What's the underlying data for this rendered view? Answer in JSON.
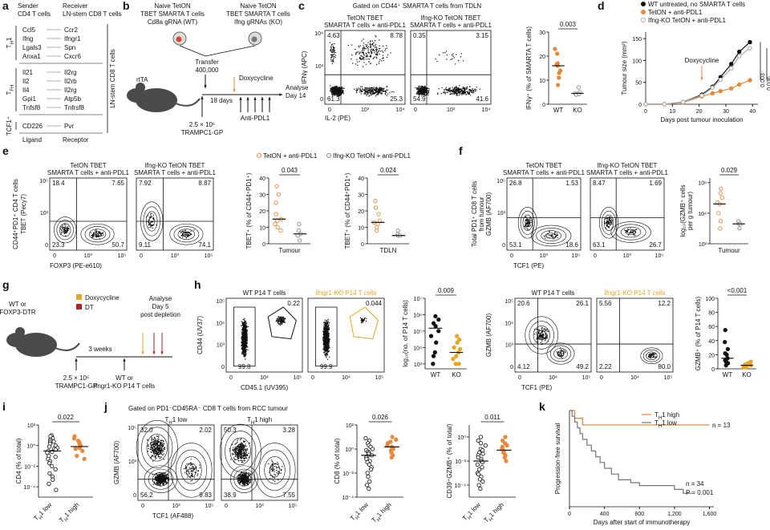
{
  "a": {
    "label": "a",
    "sender": [
      "Sender",
      "CD4 T cells"
    ],
    "receiver": [
      "Receiver",
      "LN-stem CD8 T cells"
    ],
    "groups": [
      {
        "name": {
          "main": "T",
          "sub": "H",
          "rest": "1"
        },
        "pairs": [
          [
            "Ccl5",
            "Ccr2"
          ],
          [
            "Ifng",
            "Ifngr1"
          ],
          [
            "Lgals3",
            "Spn"
          ],
          [
            "Anxa1",
            "Cxcr6"
          ]
        ]
      },
      {
        "name": {
          "main": "T",
          "sub": "FH"
        },
        "pairs": [
          [
            "Il21",
            "Il2rg"
          ],
          [
            "Il2",
            "Il2rb"
          ],
          [
            "Il4",
            "Il2rg"
          ],
          [
            "Gpi1",
            "Atp5b"
          ],
          [
            "Tnfsf8",
            "Tnfrsf8"
          ]
        ]
      },
      {
        "name": {
          "main": "TCF1⁺"
        },
        "pairs": [
          [
            "CD226",
            "Pvr"
          ]
        ]
      }
    ],
    "footer": [
      "Ligand",
      "Receptor"
    ],
    "side": "LN-stem CD8 T cells"
  },
  "b": {
    "label": "b",
    "wt": [
      "Naive TetON",
      "TBET SMARTA T cells",
      "Cd8a gRNA (WT)"
    ],
    "ko": [
      "Naive TetON",
      "TBET SMARTA T cells",
      "Ifng gRNAs (KO)"
    ],
    "transfer": [
      "Transfer",
      "400,000"
    ],
    "mouse": "rtTA",
    "days": "18 days",
    "dox": "Doxycycline",
    "analyse": [
      "Analyse",
      "Day 14"
    ],
    "tumour": [
      "2.5 × 10⁶",
      "TRAMPC1-GP"
    ],
    "treatment": "Anti-PDL1"
  },
  "c": {
    "label": "c",
    "title": "Gated on CD44⁺ SMARTA T cells from TDLN",
    "flow": [
      {
        "title": [
          "TetON TBET",
          "SMARTA T cells + anti-PDL1"
        ],
        "quadrants": [
          4.63,
          8.78,
          61.3,
          25.3
        ]
      },
      {
        "title": [
          "Ifng-KO TetON TBET",
          "SMARTA T cells + anti-PDL1"
        ],
        "quadrants": [
          0.35,
          3.15,
          54.9,
          41.6
        ]
      }
    ],
    "flow_yticks": [
      "10⁴",
      "10³",
      "0"
    ],
    "flow_xticks": [
      "0",
      "10³",
      "10⁴"
    ],
    "ylabel": "IFNγ (APC)",
    "xlabel": "IL-2 (PE)",
    "dots": {
      "p": 0.003,
      "ylabel": [
        "IFNγ⁺ (% of SMARTA T cells)"
      ],
      "categories": [
        "WT",
        "KO"
      ],
      "ylim": [
        0,
        30
      ],
      "yticks": [
        0,
        10,
        20,
        30
      ],
      "groups": [
        {
          "color": "#e8883a",
          "values": [
            23,
            21,
            17,
            16.5,
            16,
            14,
            13,
            11,
            8
          ],
          "median": 16
        },
        {
          "color": "#8c8c8c",
          "hollow": true,
          "values": [
            7,
            5,
            4.5,
            4,
            4,
            4.2
          ],
          "median": 4.5
        }
      ]
    }
  },
  "d": {
    "label": "d",
    "ylabel": "Tumour size (mm²)",
    "xlabel": "Days post tumour inoculation",
    "dox": "Doxycycline",
    "dox_day": 21,
    "xlim": [
      0,
      42
    ],
    "xticks": [
      0,
      10,
      20,
      30,
      40
    ],
    "ylim": [
      0,
      165
    ],
    "yticks": [
      0,
      50,
      100,
      150
    ],
    "x": [
      0,
      7,
      14,
      21,
      25,
      28,
      32,
      35,
      39
    ],
    "series": [
      {
        "name": "WT untreated, no SMARTA T cells",
        "color": "#111111",
        "values": [
          0,
          0,
          5,
          22,
          40,
          62,
          92,
          120,
          142
        ]
      },
      {
        "name": "TetON + anti-PDL1",
        "color": "#e8883a",
        "values": [
          0,
          0,
          4,
          18,
          25,
          30,
          36,
          45,
          55
        ]
      },
      {
        "name": "Ifng-KO TetON + anti-PDL1",
        "color": "#a8a8a8",
        "hollow": true,
        "values": [
          0,
          0,
          5,
          20,
          38,
          56,
          82,
          110,
          128
        ]
      }
    ],
    "p": [
      0.003,
      0.036
    ]
  },
  "e": {
    "label": "e",
    "legend": [
      "TetON + anti-PDL1",
      "Ifng-KO TetON + anti-PDL1"
    ],
    "flow": [
      {
        "title": [
          "TetON TBET",
          "SMARTA T cells + anti-PDL1"
        ],
        "quadrants": [
          18.4,
          7.65,
          23.3,
          50.7
        ]
      },
      {
        "title": [
          "Ifng-KO TetON TBET",
          "SMARTA T cells + anti-PDL1"
        ],
        "quadrants": [
          7.92,
          8.87,
          9.11,
          74.1
        ]
      }
    ],
    "flow_yticks": [
      "10⁵",
      "10³",
      "0"
    ],
    "flow_xticks": [
      "0",
      "10⁰",
      "10⁵"
    ],
    "ylabel": [
      "CD44⁺PD1⁺ CD4 T cells",
      "TBET (Pecy7)"
    ],
    "xlabel": "FOXP3 (PE-e610)",
    "dots": [
      {
        "p": 0.043,
        "ylabel": [
          "TBET⁺ (% of CD44⁺PD1⁺)"
        ],
        "xlabel": "Tumour",
        "ylim": [
          0,
          40
        ],
        "yticks": [
          0,
          10,
          20,
          30,
          40
        ],
        "groups": [
          {
            "color": "#e8883a",
            "hollow": true,
            "values": [
              35,
              30,
              25,
              18,
              15,
              14,
              12,
              10,
              8
            ],
            "median": 15
          },
          {
            "color": "#8c8c8c",
            "hollow": true,
            "values": [
              12,
              8,
              6,
              5,
              2
            ],
            "median": 6
          }
        ]
      },
      {
        "p": 0.024,
        "ylabel": [
          "TBET⁺ (% of CD44⁺PD1⁺)"
        ],
        "xlabel": "TDLN",
        "ylim": [
          0,
          40
        ],
        "yticks": [
          0,
          10,
          20,
          30,
          40
        ],
        "groups": [
          {
            "color": "#e8883a",
            "hollow": true,
            "values": [
              26,
              22,
              18,
              14,
              13,
              12,
              10,
              8
            ],
            "median": 13
          },
          {
            "color": "#8c8c8c",
            "hollow": true,
            "values": [
              8,
              6,
              5,
              5
            ],
            "median": 5
          }
        ]
      }
    ]
  },
  "f": {
    "label": "f",
    "flow": [
      {
        "title": [
          "TetON TBET",
          "SMARTA T cells + anti-PDL1"
        ],
        "quadrants": [
          26.8,
          1.53,
          53.1,
          18.6
        ]
      },
      {
        "title": [
          "Ifng-KO TetON TBET",
          "SMARTA T cells + anti-PDL1"
        ],
        "quadrants": [
          8.47,
          1.69,
          63.1,
          26.7
        ]
      }
    ],
    "flow_yticks": [
      "10⁵",
      "10³",
      "0"
    ],
    "flow_xticks": [
      "0",
      "10⁰",
      "10⁵"
    ],
    "ylabel": [
      "Total PD1⁺ CD8 T cells",
      "from tumour",
      "GZMB (AF700)"
    ],
    "xlabel": "TCF1 (PE)",
    "dots": {
      "p": 0.029,
      "ylabel": [
        "log₁₀(GZMB⁺ cells",
        "per g tumour)"
      ],
      "xlabel": "Tumour",
      "log": true,
      "ylim": [
        100,
        2000000
      ],
      "yticks": [
        {
          "value": 100,
          "label": "10²"
        },
        {
          "value": 10000,
          "label": "10⁴"
        },
        {
          "value": 1000000,
          "label": "10⁶"
        }
      ],
      "groups": [
        {
          "color": "#e8883a",
          "hollow": true,
          "values": [
            400000,
            200000,
            100000,
            50000,
            40000,
            10000,
            3000,
            1000
          ],
          "median": 40000
        },
        {
          "color": "#8c8c8c",
          "hollow": true,
          "values": [
            3000,
            2000,
            2000,
            1000
          ],
          "median": 2000
        }
      ]
    }
  },
  "g": {
    "label": "g",
    "mouse": [
      "WT or",
      "FOXP3-DTR"
    ],
    "legend": [
      "Doxycycline",
      "DT"
    ],
    "analyse": [
      "Analyse",
      "Day 5",
      "post depletion"
    ],
    "weeks": "3 weeks",
    "tumour": [
      "2.5 × 10⁶",
      "TRAMPC1-GP"
    ],
    "cells": [
      "WT or",
      "Ifngr1-KO P14 T cells"
    ]
  },
  "h": {
    "label": "h",
    "flow": [
      {
        "title": [
          "WT P14 T cells"
        ],
        "gates": [
          0.22,
          99.8
        ]
      },
      {
        "title": [
          "Ifngr1-KO P14 T cells"
        ],
        "gates": [
          0.044,
          99.9
        ]
      },
      {
        "title": [
          "WT P14 T cells"
        ],
        "quadrants": [
          20.6,
          26.1,
          4.12,
          49.2
        ]
      },
      {
        "title": [
          "Ifngr1-KO P14 T cells"
        ],
        "quadrants": [
          5.56,
          12.2,
          2.22,
          "80.0"
        ]
      }
    ],
    "flow_yticks": [
      "10⁵",
      "10⁴",
      "10³",
      "0"
    ],
    "flow_xticks": [
      "0",
      "10⁴",
      "10⁵"
    ],
    "ylabel": [
      "CD44 (UV37)",
      "GZMB (AF700)"
    ],
    "xlabel": [
      "CD45.1 (UV395)",
      "TCF1 (PE)"
    ],
    "dots": [
      {
        "p": 0.009,
        "ylabel": [
          "log₁₀(no. of P14 T cells)"
        ],
        "categories": [
          "WT",
          "KO"
        ],
        "log": true,
        "ylim": [
          500,
          10000000
        ],
        "yticks": [
          {
            "value": 1000,
            "label": "10³"
          },
          {
            "value": 10000,
            "label": "10⁴"
          },
          {
            "value": 100000,
            "label": "10⁵"
          },
          {
            "value": 1000000,
            "label": "10⁶"
          },
          {
            "value": 10000000,
            "label": "10⁷"
          }
        ],
        "groups": [
          {
            "color": "#111111",
            "values": [
              800000,
              500000,
              300000,
              200000,
              100000,
              50000,
              20000,
              5000,
              3000,
              1000
            ],
            "median": 150000
          },
          {
            "color": "#e6a620",
            "values": [
              50000,
              30000,
              20000,
              10000,
              8000,
              5000,
              3000,
              2000,
              1000,
              1000
            ],
            "median": 5000
          }
        ]
      },
      {
        "p": "<0.001",
        "ylabel": [
          "GZMB⁺ (% of P14 T cells)"
        ],
        "categories": [
          "WT",
          "KO"
        ],
        "ylim": [
          0,
          100
        ],
        "yticks": [
          0,
          20,
          40,
          60,
          80,
          100
        ],
        "groups": [
          {
            "color": "#111111",
            "values": [
              55,
              38,
              28,
              22,
              20,
              15,
              12,
              10,
              8,
              5
            ],
            "median": 15
          },
          {
            "color": "#e6a620",
            "values": [
              10,
              8,
              7,
              6,
              5,
              4,
              3,
              3,
              2,
              2
            ],
            "median": 5
          }
        ]
      }
    ]
  },
  "i": {
    "label": "i",
    "dots": {
      "p": 0.022,
      "ylabel": [
        "CD4 (% of total)"
      ],
      "categories": [
        {
          "main": "T",
          "sub": "H",
          "rest": "1 low"
        },
        {
          "main": "T",
          "sub": "H",
          "rest": "1 high"
        }
      ],
      "log": true,
      "ylim": [
        1e-05,
        100
      ],
      "yticks": [
        {
          "value": 0.0001,
          "label": "10⁻⁴"
        },
        {
          "value": 0.01,
          "label": "10⁻²"
        },
        {
          "value": 1,
          "label": "10⁰"
        },
        {
          "value": 100,
          "label": "10²"
        }
      ],
      "groups": [
        {
          "color": "#222222",
          "hollow": true,
          "values": [
            10,
            8,
            5,
            4,
            3,
            2.5,
            2,
            1.5,
            1,
            0.8,
            0.6,
            0.5,
            0.4,
            0.3,
            0.25,
            0.2,
            0.1,
            0.08,
            0.05,
            0.03,
            0.02,
            0.01,
            0.005,
            0.002,
            0.001,
            0.0005,
            0.0002,
            5e-05
          ],
          "median": 0.3
        },
        {
          "color": "#e8883a",
          "values": [
            8,
            5,
            3,
            2,
            1.5,
            1,
            0.8,
            0.6,
            0.5,
            0.3,
            0.1,
            0.05
          ],
          "median": 0.8
        }
      ]
    }
  },
  "j": {
    "label": "j",
    "title": "Gated on PD1⁻CD45RA⁻ CD8 T cells from RCC tumour",
    "flow": [
      {
        "title": [
          {
            "main": "T",
            "sub": "H",
            "rest": "1 low"
          }
        ],
        "quadrants": [
          "32.0",
          2.02,
          56.2,
          9.83
        ]
      },
      {
        "title": [
          {
            "main": "T",
            "sub": "H",
            "rest": "1 high"
          }
        ],
        "quadrants": [
          50.3,
          3.28,
          38.9,
          7.55
        ]
      }
    ],
    "flow_yticks": [
      "10⁵",
      "10³",
      "0"
    ],
    "flow_xticks": [
      "0",
      "10³",
      "10⁵"
    ],
    "ylabel": "GZMB (AF700)",
    "xlabel": "TCF1 (AF488)",
    "dots": [
      {
        "p": 0.026,
        "ylabel": [
          "CD8 (% of total)"
        ],
        "categories": [
          {
            "main": "T",
            "sub": "H",
            "rest": "1 low"
          },
          {
            "main": "T",
            "sub": "H",
            "rest": "1 high"
          }
        ],
        "log": true,
        "ylim": [
          0.0001,
          100
        ],
        "yticks": [
          {
            "value": 0.0001,
            "label": "10⁻⁴"
          },
          {
            "value": 0.01,
            "label": "10⁻²"
          },
          {
            "value": 1,
            "label": "10⁰"
          },
          {
            "value": 100,
            "label": "10²"
          }
        ],
        "groups": [
          {
            "color": "#222222",
            "hollow": true,
            "values": [
              8,
              5,
              3,
              2,
              1.5,
              1,
              0.8,
              0.6,
              0.5,
              0.4,
              0.3,
              0.25,
              0.2,
              0.15,
              0.1,
              0.08,
              0.05,
              0.03,
              0.02,
              0.01,
              0.005,
              0.002,
              0.001,
              0.0005
            ],
            "median": 0.3
          },
          {
            "color": "#e8883a",
            "values": [
              10,
              6,
              4,
              3,
              2,
              1.5,
              1.2,
              1,
              0.8,
              0.5,
              0.3,
              0.2
            ],
            "median": 1.5
          }
        ]
      },
      {
        "p": 0.011,
        "ylabel": [
          "CD39⁺GZMB⁺ (% of total)"
        ],
        "categories": [
          {
            "main": "T",
            "sub": "H",
            "rest": "1 low"
          },
          {
            "main": "T",
            "sub": "H",
            "rest": "1 high"
          }
        ],
        "log": true,
        "ylim": [
          1e-05,
          10
        ],
        "yticks": [
          {
            "value": 0.0001,
            "label": "10⁻⁴"
          },
          {
            "value": 0.01,
            "label": "10⁻²"
          },
          {
            "value": 1,
            "label": "10⁰"
          }
        ],
        "groups": [
          {
            "color": "#222222",
            "hollow": true,
            "values": [
              1,
              0.5,
              0.3,
              0.2,
              0.1,
              0.08,
              0.05,
              0.04,
              0.03,
              0.02,
              0.015,
              0.01,
              0.008,
              0.005,
              0.003,
              0.002,
              0.001,
              0.0008,
              0.0005,
              0.0003,
              0.0002,
              0.0001,
              5e-05
            ],
            "median": 0.01
          },
          {
            "color": "#e8883a",
            "values": [
              1,
              0.5,
              0.3,
              0.2,
              0.15,
              0.1,
              0.08,
              0.06,
              0.05,
              0.03,
              0.02,
              0.01
            ],
            "median": 0.08
          }
        ]
      }
    ]
  },
  "k": {
    "label": "k",
    "ylabel": "Progression-free survival",
    "xlabel": "Days after start of immunotherapy",
    "xlim": [
      0,
      1650
    ],
    "xticks": [
      0,
      400,
      800,
      {
        "value": 1200,
        "label": "1,200"
      },
      {
        "value": 1600,
        "label": "1,600"
      }
    ],
    "ylim": [
      0,
      1
    ],
    "series": [
      {
        "name": {
          "main": "T",
          "sub": "H",
          "rest": "1 high"
        },
        "color": "#e8883a",
        "n": "n = 13",
        "times": [
          0,
          60,
          150,
          1600
        ],
        "survival": [
          1,
          0.92,
          0.85,
          0.85
        ]
      },
      {
        "name": {
          "main": "T",
          "sub": "H",
          "rest": "1 low"
        },
        "color": "#777777",
        "n": "n = 34",
        "times": [
          0,
          30,
          60,
          90,
          120,
          150,
          200,
          250,
          300,
          350,
          400,
          480,
          560,
          700,
          800,
          1200,
          1300,
          1400
        ],
        "survival": [
          1,
          0.94,
          0.88,
          0.82,
          0.76,
          0.7,
          0.64,
          0.58,
          0.52,
          0.46,
          0.4,
          0.34,
          0.28,
          0.25,
          0.22,
          0.18,
          0.14,
          0.14
        ]
      }
    ],
    "p": "P = 0.001"
  }
}
